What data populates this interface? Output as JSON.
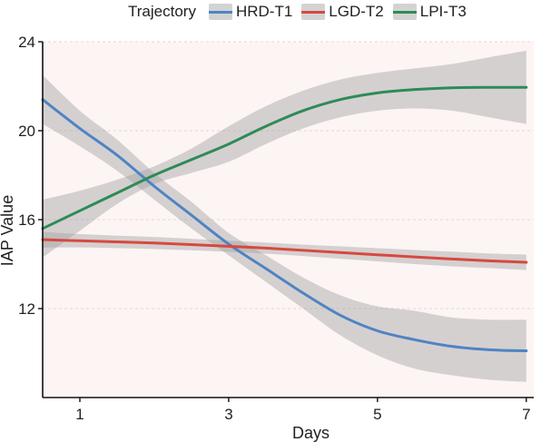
{
  "chart_data": {
    "type": "line",
    "title": "",
    "xlabel": "Days",
    "ylabel": "IAP Value",
    "xlim": [
      0.5,
      7.1
    ],
    "ylim": [
      8.0,
      24.0
    ],
    "xticks": [
      1,
      3,
      5,
      7
    ],
    "yticks": [
      12,
      16,
      20,
      24
    ],
    "grid": true,
    "legend": {
      "title": "Trajectory",
      "placement": "top"
    },
    "x": [
      0.5,
      1.0,
      1.5,
      2.0,
      2.5,
      3.0,
      3.5,
      4.0,
      4.5,
      5.0,
      5.5,
      6.0,
      6.5,
      7.0
    ],
    "series": [
      {
        "name": "HRD-T1",
        "color": "#4e84c4",
        "values": [
          21.4,
          20.1,
          18.9,
          17.5,
          16.2,
          14.9,
          13.8,
          12.7,
          11.7,
          11.0,
          10.6,
          10.3,
          10.15,
          10.1
        ],
        "ci_low": [
          20.3,
          19.3,
          18.2,
          16.9,
          15.6,
          14.4,
          13.2,
          12.0,
          10.8,
          9.9,
          9.3,
          9.0,
          8.8,
          8.7
        ],
        "ci_high": [
          22.5,
          20.9,
          19.6,
          18.1,
          16.8,
          15.4,
          14.4,
          13.4,
          12.6,
          12.1,
          11.9,
          11.6,
          11.5,
          11.5
        ]
      },
      {
        "name": "LGD-T2",
        "color": "#d6493f",
        "values": [
          15.1,
          15.05,
          15.0,
          14.95,
          14.88,
          14.8,
          14.72,
          14.62,
          14.52,
          14.42,
          14.32,
          14.23,
          14.15,
          14.08
        ],
        "ci_low": [
          14.75,
          14.75,
          14.72,
          14.68,
          14.62,
          14.55,
          14.47,
          14.36,
          14.24,
          14.12,
          14.0,
          13.9,
          13.82,
          13.73
        ],
        "ci_high": [
          15.45,
          15.35,
          15.28,
          15.22,
          15.14,
          15.05,
          14.97,
          14.88,
          14.8,
          14.72,
          14.64,
          14.56,
          14.48,
          14.43
        ]
      },
      {
        "name": "LPI-T3",
        "color": "#2e8b57",
        "values": [
          15.6,
          16.4,
          17.2,
          18.0,
          18.7,
          19.4,
          20.2,
          20.9,
          21.4,
          21.7,
          21.85,
          21.93,
          21.95,
          21.95
        ],
        "ci_low": [
          14.3,
          15.5,
          16.7,
          17.6,
          18.1,
          18.6,
          19.4,
          20.1,
          20.6,
          20.9,
          21.0,
          20.9,
          20.6,
          20.3
        ],
        "ci_high": [
          16.9,
          17.3,
          17.8,
          18.4,
          19.2,
          20.2,
          21.1,
          21.8,
          22.3,
          22.6,
          22.8,
          23.0,
          23.3,
          23.6
        ]
      }
    ]
  }
}
